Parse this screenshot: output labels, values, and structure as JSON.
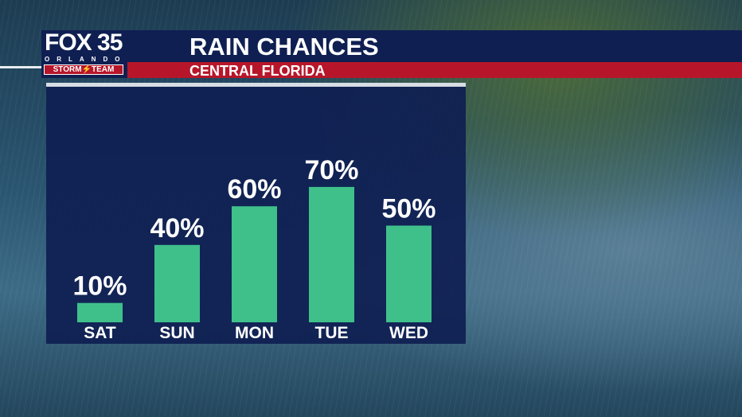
{
  "header": {
    "logo_text": "FOX 35",
    "logo_city": "ORLANDO",
    "logo_team": "STORM⚡TEAM",
    "title": "RAIN CHANCES",
    "subtitle": "CENTRAL FLORIDA"
  },
  "colors": {
    "bar": "#3fc08b",
    "navy": "#0f1f52",
    "red": "#b7162a"
  },
  "chart_data": {
    "type": "bar",
    "title": "RAIN CHANCES",
    "subtitle": "CENTRAL FLORIDA",
    "categories": [
      "SAT",
      "SUN",
      "MON",
      "TUE",
      "WED"
    ],
    "values": [
      10,
      40,
      60,
      70,
      50
    ],
    "labels": [
      "10%",
      "40%",
      "60%",
      "70%",
      "50%"
    ],
    "unit": "%",
    "ylim": [
      0,
      100
    ],
    "grid": false
  }
}
